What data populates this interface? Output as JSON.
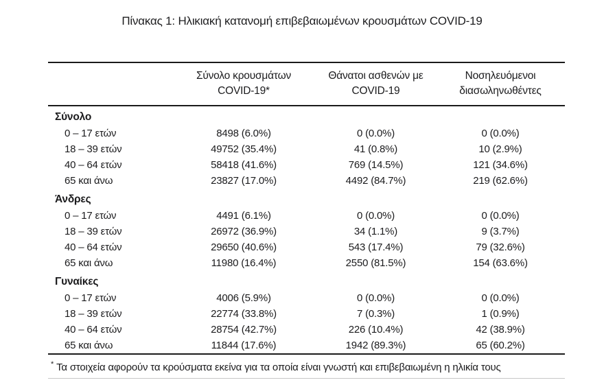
{
  "page": {
    "title": "Πίνακας 1: Ηλικιακή κατανομή επιβεβαιωμένων κρουσμάτων COVID-19"
  },
  "table": {
    "header": {
      "cases": [
        "Σύνολο κρουσμάτων",
        "COVID-19*"
      ],
      "deaths": [
        "Θάνατοι ασθενών με",
        "COVID-19"
      ],
      "intubated": [
        "Νοσηλευόμενοι",
        "διασωληνωθέντες"
      ]
    },
    "sections": [
      {
        "label": "Σύνολο",
        "rows": [
          {
            "age": "0 – 17 ετών",
            "cases": "8498 (6.0%)",
            "deaths": "0 (0.0%)",
            "intubated": "0 (0.0%)"
          },
          {
            "age": "18 – 39 ετών",
            "cases": "49752 (35.4%)",
            "deaths": "41 (0.8%)",
            "intubated": "10 (2.9%)"
          },
          {
            "age": "40 – 64 ετών",
            "cases": "58418 (41.6%)",
            "deaths": "769 (14.5%)",
            "intubated": "121 (34.6%)"
          },
          {
            "age": "65 και άνω",
            "cases": "23827 (17.0%)",
            "deaths": "4492 (84.7%)",
            "intubated": "219 (62.6%)"
          }
        ]
      },
      {
        "label": "Άνδρες",
        "rows": [
          {
            "age": "0 – 17 ετών",
            "cases": "4491 (6.1%)",
            "deaths": "0 (0.0%)",
            "intubated": "0 (0.0%)"
          },
          {
            "age": "18 – 39 ετών",
            "cases": "26972 (36.9%)",
            "deaths": "34 (1.1%)",
            "intubated": "9 (3.7%)"
          },
          {
            "age": "40 – 64 ετών",
            "cases": "29650 (40.6%)",
            "deaths": "543 (17.4%)",
            "intubated": "79 (32.6%)"
          },
          {
            "age": "65 και άνω",
            "cases": "11980 (16.4%)",
            "deaths": "2550 (81.5%)",
            "intubated": "154 (63.6%)"
          }
        ]
      },
      {
        "label": "Γυναίκες",
        "rows": [
          {
            "age": "0 – 17 ετών",
            "cases": "4006 (5.9%)",
            "deaths": "0 (0.0%)",
            "intubated": "0 (0.0%)"
          },
          {
            "age": "18 – 39 ετών",
            "cases": "22774 (33.8%)",
            "deaths": "7 (0.3%)",
            "intubated": "1 (0.9%)"
          },
          {
            "age": "40 – 64 ετών",
            "cases": "28754 (42.7%)",
            "deaths": "226 (10.4%)",
            "intubated": "42 (38.9%)"
          },
          {
            "age": "65 και άνω",
            "cases": "11844 (17.6%)",
            "deaths": "1942 (89.3%)",
            "intubated": "65 (60.2%)"
          }
        ]
      }
    ],
    "footnote": {
      "marker": "*",
      "text": "Τα στοιχεία αφορούν τα κρούσματα εκείνα για τα οποία είναι γνωστή και επιβεβαιωμένη η ηλικία τους"
    }
  },
  "colors": {
    "text": "#1b1b1d",
    "rule": "#1a1a1a",
    "faint_rule": "#c6c6c6",
    "background": "#ffffff"
  }
}
